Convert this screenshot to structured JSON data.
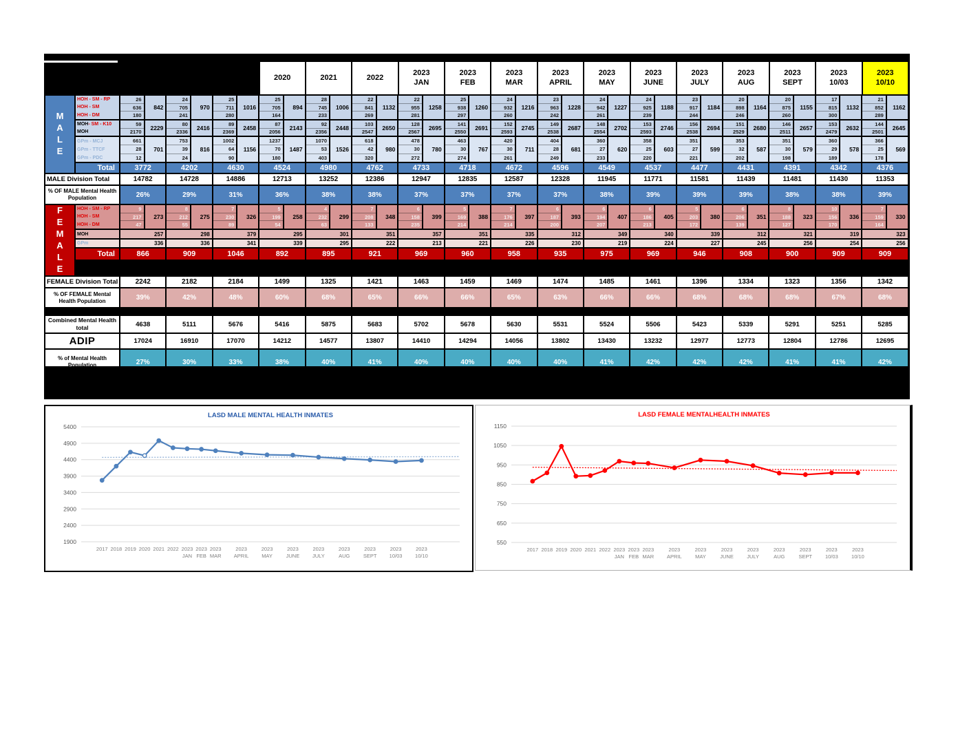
{
  "header": {
    "hidden_columns": 3,
    "year_labels": [
      "2020",
      "2021",
      "2022"
    ],
    "month_columns": [
      {
        "year": "2023",
        "period": "JAN"
      },
      {
        "year": "2023",
        "period": "FEB"
      },
      {
        "year": "2023",
        "period": "MAR"
      },
      {
        "year": "2023",
        "period": "APRIL"
      },
      {
        "year": "2023",
        "period": "MAY"
      },
      {
        "year": "2023",
        "period": "JUNE"
      },
      {
        "year": "2023",
        "period": "JULY"
      },
      {
        "year": "2023",
        "period": "AUG"
      },
      {
        "year": "2023",
        "period": "SEPT"
      },
      {
        "year": "2023",
        "period": "10/03"
      },
      {
        "year": "2023",
        "period": "10/10"
      }
    ],
    "highlight_color": "#ffff00"
  },
  "male": {
    "section_label": "MALE",
    "groups": [
      {
        "labels": [
          {
            "text": "HOH - SM - RP",
            "color": "red"
          },
          {
            "text": "HOH - SM",
            "color": "red"
          },
          {
            "text": "HOH - DM",
            "color": "red"
          }
        ],
        "values": [
          [
            26,
            636,
            180
          ],
          [
            24,
            705,
            241
          ],
          [
            25,
            711,
            280
          ],
          [
            25,
            705,
            164
          ],
          [
            28,
            745,
            233
          ],
          [
            22,
            841,
            269
          ],
          [
            22,
            955,
            281
          ],
          [
            25,
            938,
            297
          ],
          [
            24,
            932,
            260
          ],
          [
            23,
            963,
            242
          ],
          [
            24,
            942,
            261
          ],
          [
            24,
            925,
            239
          ],
          [
            23,
            917,
            244
          ],
          [
            20,
            898,
            246
          ],
          [
            20,
            875,
            260
          ],
          [
            17,
            815,
            300
          ],
          [
            21,
            852,
            289
          ]
        ],
        "subtotals": [
          842,
          970,
          1016,
          894,
          1006,
          1132,
          1258,
          1260,
          1216,
          1228,
          1227,
          1188,
          1184,
          1164,
          1155,
          1132,
          1162
        ]
      },
      {
        "labels": [
          {
            "text": "MOH",
            "suffix": " - SM - K10",
            "color": "mixed"
          },
          {
            "text": "MOH",
            "color": "black"
          }
        ],
        "values": [
          [
            59,
            2170
          ],
          [
            80,
            2336
          ],
          [
            89,
            2369
          ],
          [
            87,
            2056
          ],
          [
            92,
            2356
          ],
          [
            103,
            2547
          ],
          [
            128,
            2567
          ],
          [
            141,
            2550
          ],
          [
            152,
            2593
          ],
          [
            149,
            2538
          ],
          [
            148,
            2554
          ],
          [
            153,
            2593
          ],
          [
            156,
            2538
          ],
          [
            151,
            2529
          ],
          [
            146,
            2511
          ],
          [
            153,
            2479
          ],
          [
            144,
            2501
          ]
        ],
        "subtotals": [
          2229,
          2416,
          2458,
          2143,
          2448,
          2650,
          2695,
          2691,
          2745,
          2687,
          2702,
          2746,
          2694,
          2680,
          2657,
          2632,
          2645
        ]
      },
      {
        "labels": [
          {
            "text": "GPm - MCJ",
            "color": "blue"
          },
          {
            "text": "GPm - TTCF",
            "color": "blue"
          },
          {
            "text": "GPm - PDC",
            "color": "blue"
          }
        ],
        "values": [
          [
            661,
            28,
            12
          ],
          [
            753,
            39,
            24
          ],
          [
            1002,
            64,
            90
          ],
          [
            1237,
            70,
            180
          ],
          [
            1070,
            53,
            403
          ],
          [
            618,
            42,
            320
          ],
          [
            478,
            30,
            272
          ],
          [
            463,
            30,
            274
          ],
          [
            420,
            30,
            261
          ],
          [
            404,
            28,
            249
          ],
          [
            360,
            27,
            233
          ],
          [
            358,
            25,
            220
          ],
          [
            351,
            27,
            221
          ],
          [
            353,
            32,
            202
          ],
          [
            351,
            30,
            198
          ],
          [
            360,
            29,
            189
          ],
          [
            366,
            25,
            178
          ]
        ],
        "subtotals": [
          701,
          816,
          1156,
          1487,
          1526,
          980,
          780,
          767,
          711,
          681,
          620,
          603,
          599,
          587,
          579,
          578,
          569
        ]
      }
    ],
    "total_label": "Total",
    "totals": [
      3772,
      4202,
      4630,
      4524,
      4980,
      4762,
      4733,
      4718,
      4672,
      4596,
      4549,
      4537,
      4477,
      4431,
      4391,
      4342,
      4376
    ],
    "division_label": "MALE Division Total",
    "division_totals": [
      14782,
      14728,
      14886,
      12713,
      13252,
      12386,
      12947,
      12835,
      12587,
      12328,
      11945,
      11771,
      11581,
      11439,
      11481,
      11430,
      11353
    ],
    "pct_label_lines": [
      "% OF MALE Mental Health",
      "Population"
    ],
    "pct": [
      "26%",
      "29%",
      "31%",
      "36%",
      "38%",
      "38%",
      "37%",
      "37%",
      "37%",
      "37%",
      "38%",
      "39%",
      "39%",
      "39%",
      "38%",
      "38%",
      "39%"
    ]
  },
  "female": {
    "section_label": "FEMALE",
    "hoh_group": {
      "labels": [
        {
          "text": "HOH - SM - RP",
          "color": "red"
        },
        {
          "text": "HOH - SM",
          "color": "red"
        },
        {
          "text": "HOH - DM",
          "color": "red"
        }
      ],
      "values": [
        [
          9,
          217,
          47
        ],
        [
          8,
          212,
          55
        ],
        [
          7,
          230,
          89
        ],
        [
          5,
          199,
          54
        ],
        [
          4,
          232,
          63
        ],
        [
          7,
          208,
          133
        ],
        [
          6,
          158,
          235
        ],
        [
          5,
          169,
          214
        ],
        [
          7,
          176,
          214
        ],
        [
          6,
          187,
          200
        ],
        [
          6,
          194,
          207
        ],
        [
          6,
          186,
          213
        ],
        [
          5,
          203,
          172
        ],
        [
          6,
          206,
          139
        ],
        [
          8,
          188,
          127
        ],
        [
          10,
          156,
          170
        ],
        [
          7,
          159,
          164
        ]
      ],
      "subtotals": [
        273,
        275,
        326,
        258,
        299,
        348,
        399,
        388,
        397,
        393,
        407,
        405,
        380,
        351,
        323,
        336,
        330
      ]
    },
    "moh_label": "MOH",
    "moh": [
      257,
      298,
      379,
      295,
      301,
      351,
      357,
      351,
      335,
      312,
      349,
      340,
      339,
      312,
      321,
      319,
      323
    ],
    "gpm_label": "GPm",
    "gpm": [
      336,
      336,
      341,
      339,
      295,
      222,
      213,
      221,
      226,
      230,
      219,
      224,
      227,
      245,
      256,
      254,
      256
    ],
    "total_label": "Total",
    "totals": [
      866,
      909,
      1046,
      892,
      895,
      921,
      969,
      960,
      958,
      935,
      975,
      969,
      946,
      908,
      900,
      909,
      909
    ],
    "division_label": "FEMALE Division Total",
    "division_totals": [
      2242,
      2182,
      2184,
      1499,
      1325,
      1421,
      1463,
      1459,
      1469,
      1474,
      1485,
      1461,
      1396,
      1334,
      1323,
      1356,
      1342
    ],
    "pct_label_lines": [
      "% OF FEMALE Mental",
      "Health Population"
    ],
    "pct": [
      "39%",
      "42%",
      "48%",
      "60%",
      "68%",
      "65%",
      "66%",
      "66%",
      "65%",
      "63%",
      "66%",
      "66%",
      "68%",
      "68%",
      "68%",
      "67%",
      "68%"
    ]
  },
  "summary": {
    "combined_label_lines": [
      "Combined Mental Health",
      "total"
    ],
    "combined": [
      4638,
      5111,
      5676,
      5416,
      5875,
      5683,
      5702,
      5678,
      5630,
      5531,
      5524,
      5506,
      5423,
      5339,
      5291,
      5251,
      5285
    ],
    "adip_label": "ADIP",
    "adip": [
      17024,
      16910,
      17070,
      14212,
      14577,
      13807,
      14410,
      14294,
      14056,
      13802,
      13430,
      13232,
      12977,
      12773,
      12804,
      12786,
      12695
    ],
    "pct_label_lines": [
      "% of Mental Health",
      "Population"
    ],
    "pct": [
      "27%",
      "30%",
      "33%",
      "38%",
      "40%",
      "41%",
      "40%",
      "40%",
      "40%",
      "40%",
      "41%",
      "42%",
      "42%",
      "42%",
      "41%",
      "41%",
      "42%"
    ]
  },
  "colors": {
    "male_blue": "#4f81bd",
    "female_red": "#c00000",
    "chart_red": "#ff0000",
    "teal": "#4aabc5",
    "highlight_yellow": "#ffff00"
  },
  "chart_data": [
    {
      "type": "line",
      "title": "LASD MALE MENTAL HEALTH INMATES",
      "title_color": "#2a5caa",
      "color": "#4f81bd",
      "categories": [
        "2017",
        "2018",
        "2019",
        "2020",
        "2021",
        "2022",
        "2023 JAN",
        "2023 FEB",
        "2023 MAR",
        "2023 APRIL",
        "2023 MAY",
        "2023 JUNE",
        "2023 JULY",
        "2023 AUG",
        "2023 SEPT",
        "2023 10/03",
        "2023 10/10"
      ],
      "values": [
        3772,
        4202,
        4630,
        4524,
        4980,
        4762,
        4733,
        4718,
        4672,
        4596,
        4549,
        4537,
        4477,
        4431,
        4391,
        4342,
        4376
      ],
      "ylim": [
        1900,
        5400
      ],
      "ytick_step": 500,
      "grid": true,
      "legend": "none",
      "trendline": {
        "style": "dotted",
        "start": 4470,
        "end": 4492,
        "color": "#95b3d7"
      },
      "open_markers": [
        3
      ]
    },
    {
      "type": "line",
      "title": "LASD FEMALE MENTALHEALTH INMATES",
      "title_color": "#ff0000",
      "color": "#ff0000",
      "categories": [
        "2017",
        "2018",
        "2019",
        "2020",
        "2021",
        "2022",
        "2023 JAN",
        "2023 FEB",
        "2023 MAR",
        "2023 APRIL",
        "2023 MAY",
        "2023 JUNE",
        "2023 JULY",
        "2023 AUG",
        "2023 SEPT",
        "2023 10/03",
        "2023 10/10"
      ],
      "values": [
        866,
        909,
        1046,
        892,
        895,
        921,
        969,
        960,
        958,
        935,
        975,
        969,
        946,
        908,
        900,
        909,
        909
      ],
      "ylim": [
        550,
        1150
      ],
      "ytick_step": 100,
      "grid": true,
      "legend": "none",
      "trendline": {
        "style": "dotted",
        "start": 938,
        "end": 921,
        "color": "#ff0000"
      },
      "open_markers": []
    }
  ]
}
